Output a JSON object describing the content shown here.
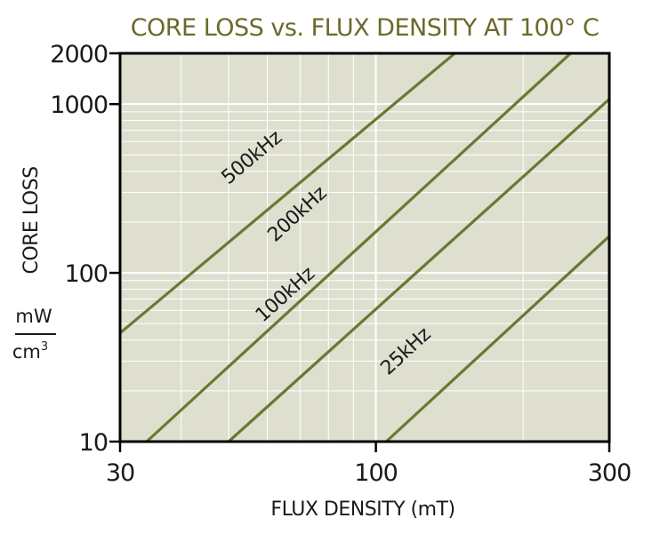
{
  "chart_data": {
    "type": "line",
    "title": "CORE LOSS vs. FLUX DENSITY AT 100° C",
    "xlabel": "FLUX DENSITY (mT)",
    "ylabel": "CORE LOSS",
    "y_unit": {
      "numerator": "mW",
      "denominator": "cm",
      "exponent": "3"
    },
    "x_scale": "log",
    "y_scale": "log",
    "xlim": [
      30,
      300
    ],
    "ylim": [
      10,
      2000
    ],
    "x_ticks": [
      {
        "value": 30,
        "label": "30"
      },
      {
        "value": 100,
        "label": "100"
      },
      {
        "value": 300,
        "label": "300"
      }
    ],
    "y_ticks": [
      {
        "value": 10,
        "label": "10"
      },
      {
        "value": 100,
        "label": "100"
      },
      {
        "value": 1000,
        "label": "1000"
      },
      {
        "value": 2000,
        "label": "2000"
      }
    ],
    "grid": true,
    "colors": {
      "plot_background": "#dedfcf",
      "grid": "#ffffff",
      "series": "#6b7832",
      "title": "#6b6a2a",
      "frame": "#000000"
    },
    "series": [
      {
        "name": "500kHz",
        "label_at": [
          58,
          420
        ],
        "x": [
          30,
          145
        ],
        "y": [
          44,
          2000
        ]
      },
      {
        "name": "200kHz",
        "label_at": [
          72,
          195
        ],
        "x": [
          34,
          250
        ],
        "y": [
          10,
          2000
        ]
      },
      {
        "name": "100kHz",
        "label_at": [
          68,
          65
        ],
        "x": [
          50,
          300
        ],
        "y": [
          10,
          1070
        ]
      },
      {
        "name": "25kHz",
        "label_at": [
          120,
          30
        ],
        "x": [
          105,
          300
        ],
        "y": [
          10,
          165
        ]
      }
    ]
  }
}
